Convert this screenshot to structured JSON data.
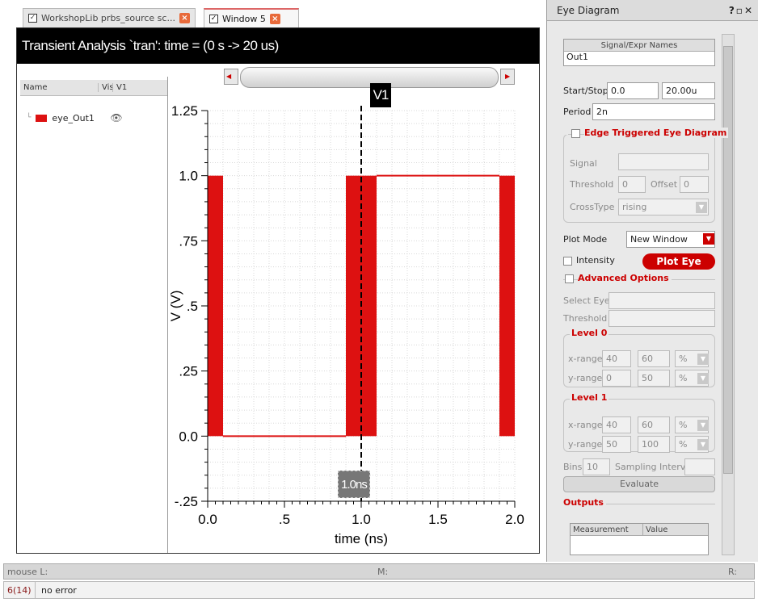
{
  "tabs": [
    {
      "label": "WorkshopLib prbs_source sc...",
      "active": false
    },
    {
      "label": "Window 5",
      "active": true
    }
  ],
  "plot": {
    "title": "Transient Analysis `tran': time = (0 s -> 20 us)",
    "legend_headers": {
      "name": "Name",
      "vis": "Vis",
      "v1": "V1"
    },
    "signal_name": "eye_Out1",
    "cursor_label": "V1",
    "delta_label": "1.0ns",
    "ylabel": "V (V)",
    "xlabel": "time (ns)"
  },
  "chart_data": {
    "type": "line",
    "title": "",
    "xlabel": "time (ns)",
    "ylabel": "V (V)",
    "xlim": [
      0.0,
      2.0
    ],
    "ylim": [
      -0.25,
      1.25
    ],
    "x_ticks": [
      "0.0",
      ".5",
      "1.0",
      "1.5",
      "2.0"
    ],
    "y_ticks": [
      "-.25",
      "0.0",
      ".25",
      ".5",
      ".75",
      "1.0",
      "1.25"
    ],
    "series_color": "#dd1111",
    "series": [
      {
        "name": "eye_Out1",
        "x": [
          0.0,
          0.0,
          0.1,
          0.1,
          0.9,
          0.9,
          1.1,
          1.1,
          1.9,
          1.9,
          2.0,
          2.0
        ],
        "y": [
          0.0,
          1.0,
          1.0,
          0.0,
          0.0,
          1.0,
          1.0,
          1.0,
          1.0,
          0.0,
          0.0,
          1.0
        ]
      }
    ],
    "filled_bands": [
      {
        "x0": 0.0,
        "x1": 0.1,
        "y0": 0.0,
        "y1": 1.0
      },
      {
        "x0": 0.9,
        "x1": 1.1,
        "y0": 0.0,
        "y1": 1.0
      },
      {
        "x0": 1.9,
        "x1": 2.0,
        "y0": 0.0,
        "y1": 1.0
      }
    ],
    "segments": [
      {
        "x0": 0.1,
        "x1": 0.9,
        "y": 0.0
      },
      {
        "x0": 1.1,
        "x1": 1.9,
        "y": 1.0
      }
    ],
    "cursor_x": 1.0,
    "grid": true
  },
  "panel": {
    "title": "Eye Diagram",
    "title_icons": "? \u0000 X",
    "signal_header": "Signal/Expr Names",
    "signal_value": "Out1",
    "start_stop_label": "Start/Stop",
    "start_value": "0.0",
    "stop_value": "20.00u",
    "period_label": "Period",
    "period_value": "2n",
    "edge_trigger_label": "Edge Triggered Eye Diagram",
    "signal_label": "Signal",
    "threshold_label": "Threshold",
    "threshold_value": "0",
    "offset_label": "Offset",
    "offset_value": "0",
    "crosstype_label": "CrossType",
    "crosstype_value": "rising",
    "plot_mode_label": "Plot Mode",
    "plot_mode_value": "New Window",
    "intensity_label": "Intensity",
    "plot_eye_label": "Plot Eye",
    "advanced_label": "Advanced Options",
    "select_eye_label": "Select Eye",
    "threshold2_label": "Threshold",
    "level0_label": "Level 0",
    "level1_label": "Level 1",
    "xrange_label": "x-range",
    "yrange_label": "y-range",
    "level0": {
      "x_min": "40",
      "x_max": "60",
      "x_unit": "%",
      "y_min": "0",
      "y_max": "50",
      "y_unit": "%"
    },
    "level1": {
      "x_min": "40",
      "x_max": "60",
      "x_unit": "%",
      "y_min": "50",
      "y_max": "100",
      "y_unit": "%"
    },
    "bins_label": "Bins",
    "bins_value": "10",
    "sampling_label": "Sampling Interval",
    "evaluate_label": "Evaluate",
    "outputs_label": "Outputs",
    "measurement_header": "Measurement",
    "value_header": "Value"
  },
  "status": {
    "mouse_l": "mouse L:",
    "m": "M:",
    "r": "R:",
    "count": "6(14)",
    "message": "no error"
  }
}
